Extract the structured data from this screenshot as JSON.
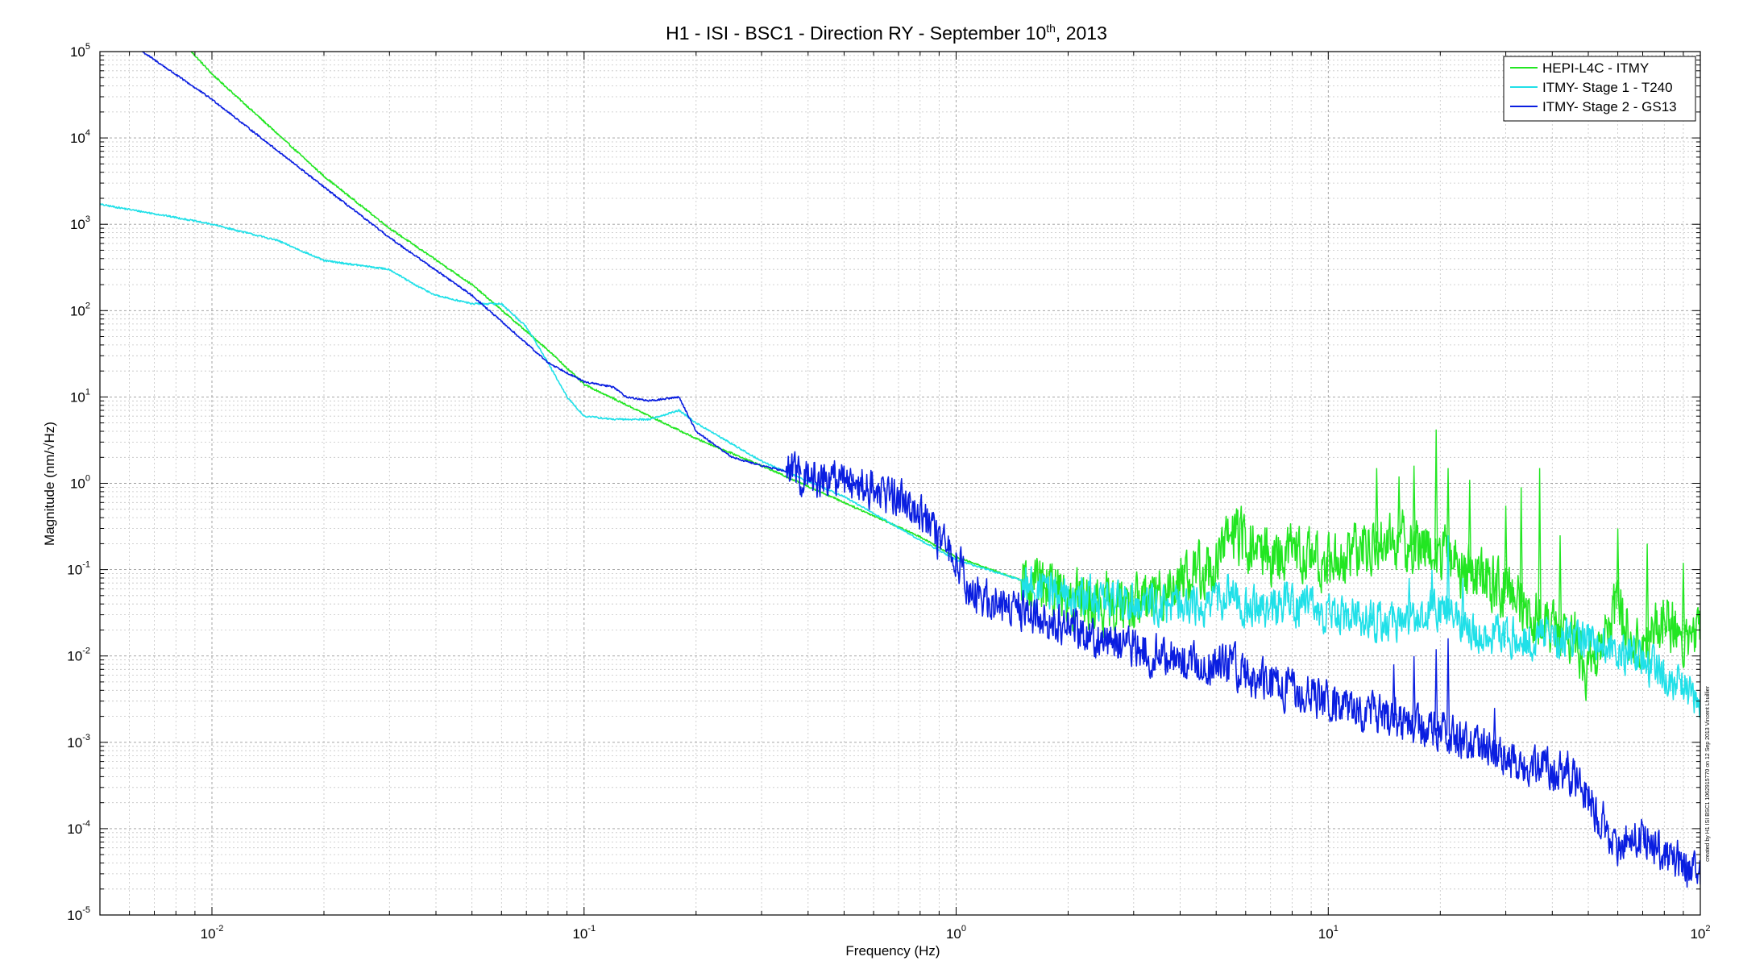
{
  "chart_data": {
    "type": "line",
    "title": {
      "before": "H1 - ISI - BSC1 - Direction RY - September 10",
      "sup": "th",
      "after": ", 2013"
    },
    "xlabel": "Frequency (Hz)",
    "ylabel": "Magnitude (nm/√Hz)",
    "xscale": "log",
    "yscale": "log",
    "xlim": [
      0.005,
      100
    ],
    "ylim": [
      1e-05,
      100000
    ],
    "grid": true,
    "legend_position": "top-right",
    "x_ticks": [
      {
        "value": 0.01,
        "base": "10",
        "exp": "-2"
      },
      {
        "value": 0.1,
        "base": "10",
        "exp": "-1"
      },
      {
        "value": 1,
        "base": "10",
        "exp": "0"
      },
      {
        "value": 10,
        "base": "10",
        "exp": "1"
      },
      {
        "value": 100,
        "base": "10",
        "exp": "2"
      }
    ],
    "y_ticks": [
      {
        "value": 1e-05,
        "base": "10",
        "exp": "-5"
      },
      {
        "value": 0.0001,
        "base": "10",
        "exp": "-4"
      },
      {
        "value": 0.001,
        "base": "10",
        "exp": "-3"
      },
      {
        "value": 0.01,
        "base": "10",
        "exp": "-2"
      },
      {
        "value": 0.1,
        "base": "10",
        "exp": "-1"
      },
      {
        "value": 1,
        "base": "10",
        "exp": "0"
      },
      {
        "value": 10,
        "base": "10",
        "exp": "1"
      },
      {
        "value": 100,
        "base": "10",
        "exp": "2"
      },
      {
        "value": 1000,
        "base": "10",
        "exp": "3"
      },
      {
        "value": 10000,
        "base": "10",
        "exp": "4"
      },
      {
        "value": 100000,
        "base": "10",
        "exp": "5"
      }
    ],
    "series": [
      {
        "name": "HEPI-L4C - ITMY",
        "color": "#22e622",
        "x": [
          0.0088,
          0.01,
          0.02,
          0.03,
          0.05,
          0.08,
          0.1,
          0.15,
          0.2,
          0.3,
          0.5,
          0.8,
          1,
          1.5,
          2,
          2.5,
          3,
          3.5,
          4,
          5,
          5.5,
          6,
          7,
          8,
          10,
          12,
          14,
          16,
          19,
          21,
          25,
          30,
          40,
          45,
          50,
          55,
          60,
          70,
          80,
          90,
          100
        ],
        "y": [
          100000,
          55000,
          3600,
          900,
          200,
          35,
          14,
          6,
          3.3,
          1.6,
          0.6,
          0.24,
          0.14,
          0.075,
          0.05,
          0.04,
          0.04,
          0.055,
          0.08,
          0.11,
          0.3,
          0.2,
          0.14,
          0.16,
          0.12,
          0.16,
          0.22,
          0.2,
          0.18,
          0.14,
          0.08,
          0.06,
          0.02,
          0.018,
          0.007,
          0.02,
          0.035,
          0.012,
          0.03,
          0.015,
          0.02
        ],
        "noise": 0.1,
        "noise_from": 1.5,
        "peaks": [
          [
            13.5,
            1.5
          ],
          [
            15.5,
            1.2
          ],
          [
            17,
            1.6
          ],
          [
            19.5,
            4.2
          ],
          [
            21,
            1.5
          ],
          [
            24,
            1.1
          ],
          [
            30,
            0.55
          ],
          [
            33,
            0.9
          ],
          [
            37,
            1.5
          ],
          [
            42,
            0.25
          ],
          [
            60,
            0.3
          ],
          [
            72,
            0.2
          ],
          [
            90,
            0.12
          ]
        ]
      },
      {
        "name": "ITMY- Stage 1 - T240",
        "color": "#20e0e8",
        "x": [
          0.005,
          0.008,
          0.01,
          0.015,
          0.02,
          0.03,
          0.035,
          0.04,
          0.05,
          0.06,
          0.07,
          0.08,
          0.09,
          0.1,
          0.12,
          0.15,
          0.18,
          0.2,
          0.3,
          0.5,
          0.8,
          1,
          1.5,
          2,
          3,
          4,
          5,
          5.5,
          6,
          8,
          10,
          15,
          20,
          25,
          30,
          40,
          50,
          60,
          80,
          100
        ],
        "y": [
          1700,
          1200,
          1000,
          650,
          380,
          300,
          200,
          150,
          120,
          120,
          65,
          25,
          10,
          6,
          5.5,
          5.5,
          7,
          5,
          1.8,
          0.7,
          0.22,
          0.13,
          0.075,
          0.05,
          0.045,
          0.035,
          0.04,
          0.06,
          0.035,
          0.04,
          0.03,
          0.025,
          0.035,
          0.018,
          0.017,
          0.016,
          0.016,
          0.012,
          0.006,
          0.0035
        ],
        "noise": 0.07,
        "noise_from": 1.5,
        "peaks": [
          [
            13,
            0.045
          ],
          [
            16.5,
            0.08
          ],
          [
            19,
            0.1
          ],
          [
            21,
            0.25
          ],
          [
            23,
            0.08
          ]
        ]
      },
      {
        "name": "ITMY- Stage 2 - GS13",
        "color": "#0a1ee0",
        "x": [
          0.0065,
          0.01,
          0.02,
          0.03,
          0.05,
          0.08,
          0.1,
          0.12,
          0.13,
          0.15,
          0.18,
          0.2,
          0.25,
          0.3,
          0.4,
          0.5,
          0.7,
          0.8,
          0.9,
          1,
          1.1,
          1.5,
          2,
          3,
          4,
          5,
          5.5,
          6,
          8,
          10,
          15,
          20,
          30,
          40,
          45,
          50,
          60,
          70,
          80,
          100
        ],
        "y": [
          100000,
          28000,
          2700,
          700,
          150,
          25,
          15,
          13,
          10,
          9,
          10,
          4,
          2,
          1.6,
          1.2,
          1.1,
          0.7,
          0.5,
          0.2,
          0.15,
          0.05,
          0.035,
          0.022,
          0.012,
          0.009,
          0.007,
          0.0085,
          0.006,
          0.004,
          0.003,
          0.0018,
          0.0013,
          0.00065,
          0.00048,
          0.0004,
          0.00023,
          6e-05,
          9e-05,
          5e-05,
          3e-05
        ],
        "noise": 0.07,
        "noise_from": 0.35,
        "peaks": [
          [
            0.38,
            1.6
          ],
          [
            0.52,
            1.5
          ],
          [
            0.75,
            0.8
          ],
          [
            15,
            0.008
          ],
          [
            17,
            0.01
          ],
          [
            19.5,
            0.012
          ],
          [
            21,
            0.016
          ],
          [
            28,
            0.0025
          ],
          [
            44,
            0.0008
          ]
        ]
      }
    ],
    "side_note": "created by H1 ISI BSC1 1062915770 on 12 Sep 2013 Vincent Lhuillier"
  }
}
